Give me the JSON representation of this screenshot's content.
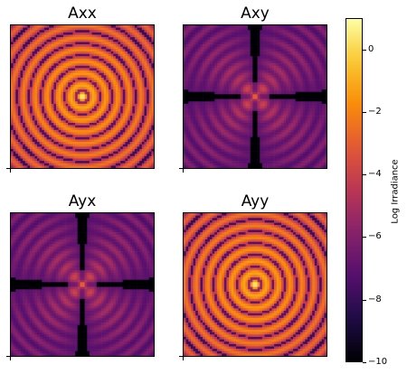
{
  "chart_data": {
    "type": "heatmap",
    "panels": [
      {
        "title": "Axx",
        "pattern": "rings"
      },
      {
        "title": "Axy",
        "pattern": "cross"
      },
      {
        "title": "Ayx",
        "pattern": "cross"
      },
      {
        "title": "Ayy",
        "pattern": "rings"
      }
    ],
    "colormap": "inferno",
    "colorbar": {
      "label": "Log Irradiance",
      "range": [
        -10,
        1
      ],
      "ticks": [
        0,
        -2,
        -4,
        -6,
        -8,
        -10
      ],
      "tick_labels": [
        "0",
        "−2",
        "−4",
        "−6",
        "−8",
        "−10"
      ]
    }
  }
}
